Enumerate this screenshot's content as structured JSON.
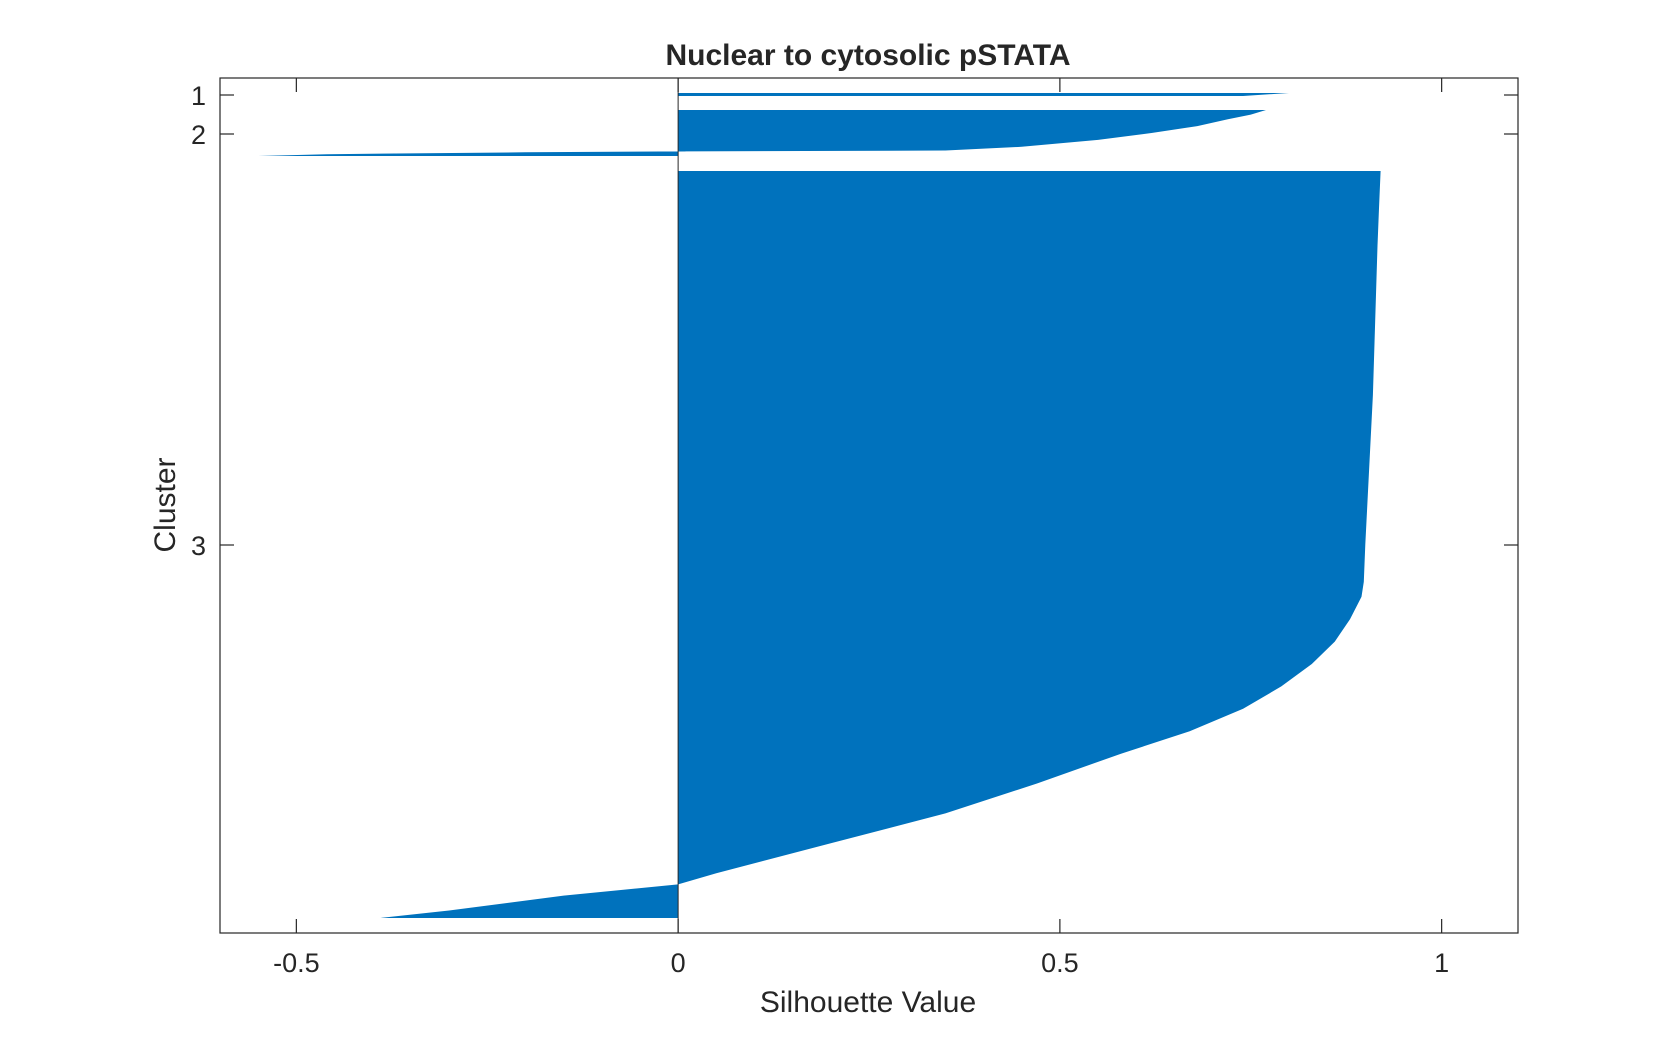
{
  "chart_data": {
    "type": "silhouette",
    "title": "Nuclear to cytosolic pSTATA",
    "xlabel": "Silhouette Value",
    "ylabel": "Cluster",
    "xlim": [
      -0.6,
      1.1
    ],
    "x_ticks": [
      "-0.5",
      "0",
      "0.5",
      "1"
    ],
    "x_tick_values": [
      -0.5,
      0,
      0.5,
      1
    ],
    "y_ticks": [
      "1",
      "2",
      "3"
    ],
    "bar_color": "#0072BD",
    "grid": false,
    "clusters": [
      {
        "label": "1",
        "profile": [
          [
            0,
            0.8
          ],
          [
            1,
            0.74
          ]
        ]
      },
      {
        "label": "2",
        "profile": [
          [
            0,
            0.77
          ],
          [
            0.1,
            0.75
          ],
          [
            0.2,
            0.72
          ],
          [
            0.35,
            0.68
          ],
          [
            0.5,
            0.62
          ],
          [
            0.65,
            0.55
          ],
          [
            0.8,
            0.45
          ],
          [
            0.88,
            0.35
          ],
          [
            0.9,
            0.01
          ],
          [
            0.92,
            -0.2
          ],
          [
            0.96,
            -0.46
          ],
          [
            1,
            -0.55
          ]
        ]
      },
      {
        "label": "3",
        "profile": [
          [
            0,
            0.92
          ],
          [
            0.05,
            0.918
          ],
          [
            0.1,
            0.916
          ],
          [
            0.2,
            0.913
          ],
          [
            0.3,
            0.91
          ],
          [
            0.4,
            0.905
          ],
          [
            0.5,
            0.9
          ],
          [
            0.55,
            0.898
          ],
          [
            0.57,
            0.895
          ],
          [
            0.6,
            0.88
          ],
          [
            0.63,
            0.86
          ],
          [
            0.66,
            0.83
          ],
          [
            0.69,
            0.79
          ],
          [
            0.72,
            0.74
          ],
          [
            0.75,
            0.67
          ],
          [
            0.78,
            0.58
          ],
          [
            0.82,
            0.47
          ],
          [
            0.86,
            0.35
          ],
          [
            0.9,
            0.2
          ],
          [
            0.94,
            0.05
          ],
          [
            0.955,
            0.0
          ],
          [
            0.97,
            -0.15
          ],
          [
            0.99,
            -0.3
          ],
          [
            1,
            -0.39
          ]
        ]
      }
    ]
  }
}
